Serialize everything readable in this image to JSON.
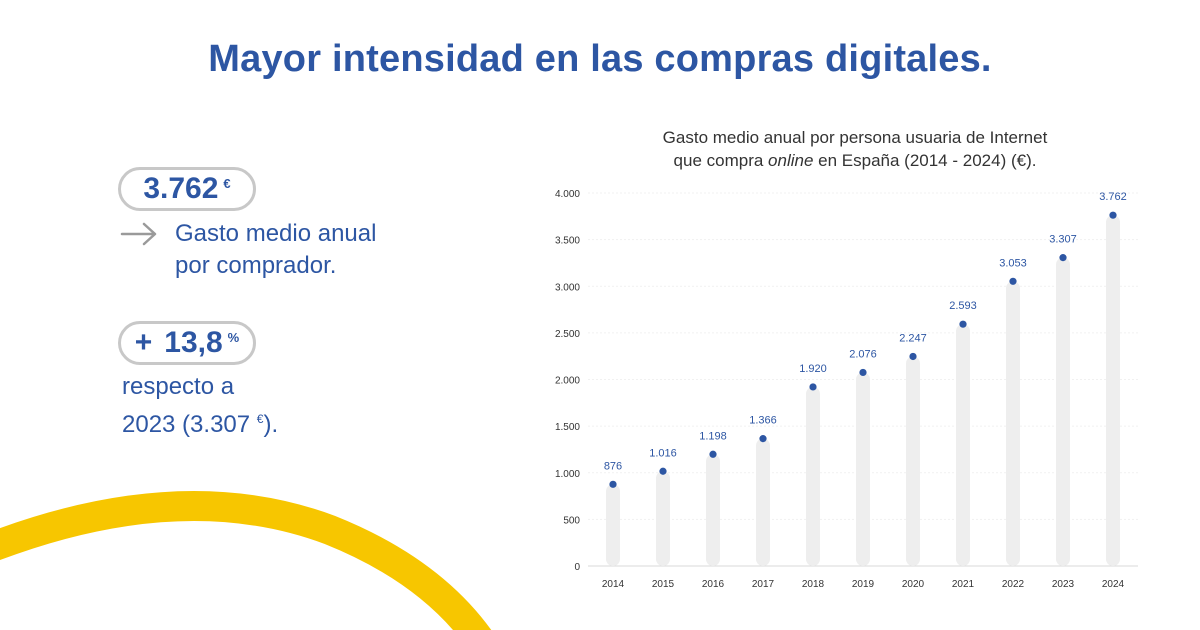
{
  "header": {
    "title": "Mayor intensidad en las compras digitales."
  },
  "stats": {
    "primary_value": "3.762",
    "primary_unit": "€",
    "primary_desc_line1": "Gasto medio anual",
    "primary_desc_line2": "por comprador.",
    "growth_sign": "+",
    "growth_value": "13,8",
    "growth_unit": "%",
    "growth_desc_line1": "respecto a",
    "growth_desc_line2_text": "2023 (3.307",
    "growth_desc_line2_unit": "€",
    "growth_desc_line2_end": ")."
  },
  "colors": {
    "accent": "#2d56a3",
    "bar": "#eeeeee",
    "decoration": "#f7c600",
    "pill_border": "#c8c8c8"
  },
  "chart_data": {
    "type": "bar",
    "title_line1": "Gasto medio anual por persona usuaria de Internet",
    "title_line2_pre": "que compra ",
    "title_line2_em": "online",
    "title_line2_post": " en España (2014 - 2024) (€).",
    "categories": [
      "2014",
      "2015",
      "2016",
      "2017",
      "2018",
      "2019",
      "2020",
      "2021",
      "2022",
      "2023",
      "2024"
    ],
    "values": [
      876,
      1016,
      1198,
      1366,
      1920,
      2076,
      2247,
      2593,
      3053,
      3307,
      3762
    ],
    "value_labels": [
      "876",
      "1.016",
      "1.198",
      "1.366",
      "1.920",
      "2.076",
      "2.247",
      "2.593",
      "3.053",
      "3.307",
      "3.762"
    ],
    "y_ticks": [
      0,
      500,
      1000,
      1500,
      2000,
      2500,
      3000,
      3500,
      4000
    ],
    "y_tick_labels": [
      "0",
      "500",
      "1.000",
      "1.500",
      "2.000",
      "2.500",
      "3.000",
      "3.500",
      "4.000"
    ],
    "ylim": [
      0,
      4000
    ],
    "grid": true,
    "xlabel": "",
    "ylabel": ""
  }
}
